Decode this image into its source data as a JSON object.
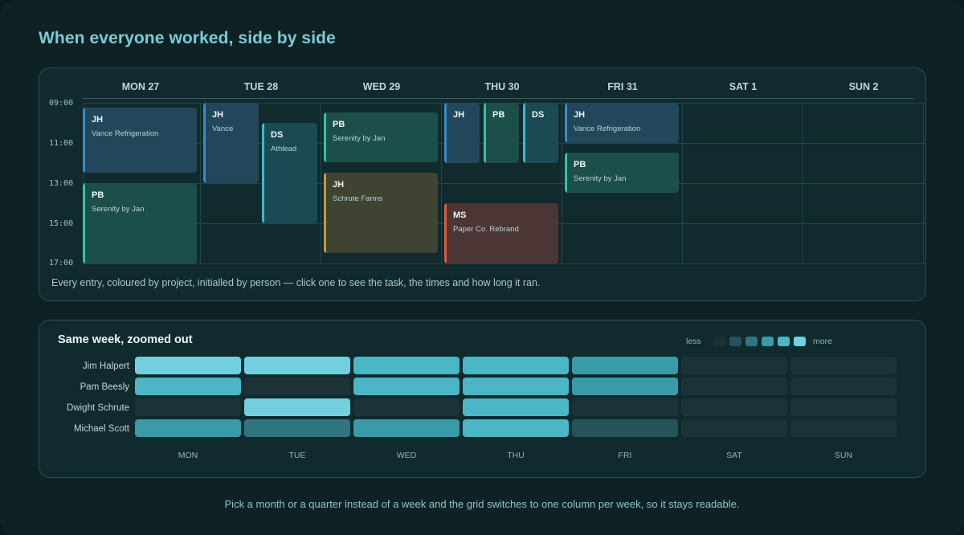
{
  "title": "When everyone worked, side by side",
  "week": {
    "days": [
      "MON 27",
      "TUE 28",
      "WED 29",
      "THU 30",
      "FRI 31",
      "SAT 1",
      "SUN 2"
    ],
    "times": [
      "09:00",
      "11:00",
      "13:00",
      "15:00",
      "17:00"
    ],
    "entries": [
      {
        "initials": "JH",
        "task": "Vance Refrigeration",
        "project": "vance"
      },
      {
        "initials": "PB",
        "task": "Serenity by Jan",
        "project": "seren"
      },
      {
        "initials": "JH",
        "task": "Vance",
        "project": "vance"
      },
      {
        "initials": "DS",
        "task": "Athlead",
        "project": "ath"
      },
      {
        "initials": "PB",
        "task": "Serenity by Jan",
        "project": "seren"
      },
      {
        "initials": "JH",
        "task": "Schrute Farms",
        "project": "schrute"
      },
      {
        "initials": "JH",
        "task": "",
        "project": "vance"
      },
      {
        "initials": "PB",
        "task": "",
        "project": "seren"
      },
      {
        "initials": "DS",
        "task": "",
        "project": "ath"
      },
      {
        "initials": "MS",
        "task": "Paper Co. Rebrand",
        "project": "paper"
      },
      {
        "initials": "JH",
        "task": "Vance Refrigeration",
        "project": "vance"
      },
      {
        "initials": "PB",
        "task": "Serenity by Jan",
        "project": "seren"
      }
    ],
    "caption": "Every entry, coloured by project, initialled by person — click one to see the task, the times and how long it ran."
  },
  "heatmap": {
    "title": "Same week, zoomed out",
    "legend_less": "less",
    "legend_more": "more",
    "legend_colors": [
      "#1b3337",
      "#26535a",
      "#2e7580",
      "#3a9aa8",
      "#4bb6c6",
      "#72d0de"
    ],
    "people": [
      "Jim Halpert",
      "Pam Beesly",
      "Dwight Schrute",
      "Michael Scott"
    ],
    "days": [
      "MON",
      "TUE",
      "WED",
      "THU",
      "FRI",
      "SAT",
      "SUN"
    ],
    "levels": [
      [
        5,
        5,
        4,
        4,
        3,
        0,
        0
      ],
      [
        4,
        0,
        4,
        4,
        3,
        0,
        0
      ],
      [
        0,
        5,
        0,
        4,
        0,
        0,
        0
      ],
      [
        3,
        2,
        3,
        4,
        1,
        0,
        0
      ]
    ]
  },
  "bottom_note": "Pick a month or a quarter instead of a week and the grid switches to one column per week, so it stays readable."
}
